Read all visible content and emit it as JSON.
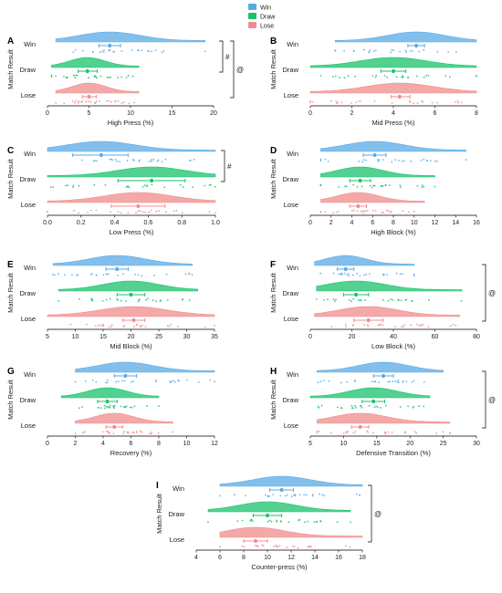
{
  "colors": {
    "win": "#5aa9e6",
    "draw": "#19c26b",
    "lose": "#f08c8c",
    "axis": "#000000",
    "text": "#222222"
  },
  "legend": [
    {
      "label": "Win",
      "color": "#5aa9e6"
    },
    {
      "label": "Draw",
      "color": "#19c26b"
    },
    {
      "label": "Lose",
      "color": "#f08c8c"
    }
  ],
  "chart_data": [
    {
      "panel": "A",
      "type": "raincloud",
      "xlabel": "High Press (%)",
      "ylabel": "Match Result",
      "categories": [
        "Win",
        "Draw",
        "Lose"
      ],
      "xlim": [
        0,
        20
      ],
      "ticks": [
        "0",
        "5",
        "10",
        "15",
        "20"
      ],
      "series": [
        {
          "name": "Win",
          "mean": 7.5,
          "ci": [
            6.2,
            8.8
          ],
          "range": [
            1,
            19
          ]
        },
        {
          "name": "Draw",
          "mean": 4.8,
          "ci": [
            3.7,
            6.0
          ],
          "range": [
            0.5,
            11
          ]
        },
        {
          "name": "Lose",
          "mean": 5.0,
          "ci": [
            4.2,
            5.9
          ],
          "range": [
            1,
            11
          ]
        }
      ],
      "annotations": [
        "#",
        "@"
      ]
    },
    {
      "panel": "B",
      "type": "raincloud",
      "xlabel": "Mid Press (%)",
      "ylabel": "Match Result",
      "categories": [
        "Win",
        "Draw",
        "Lose"
      ],
      "xlim": [
        0,
        8
      ],
      "ticks": [
        "0",
        "2",
        "4",
        "6",
        "8"
      ],
      "series": [
        {
          "name": "Win",
          "mean": 5.1,
          "ci": [
            4.7,
            5.5
          ],
          "range": [
            1.2,
            8
          ]
        },
        {
          "name": "Draw",
          "mean": 4.0,
          "ci": [
            3.4,
            4.6
          ],
          "range": [
            0,
            8
          ]
        },
        {
          "name": "Lose",
          "mean": 4.3,
          "ci": [
            3.9,
            4.8
          ],
          "range": [
            0,
            8
          ]
        }
      ],
      "annotations": []
    },
    {
      "panel": "C",
      "type": "raincloud",
      "xlabel": "Low Press (%)",
      "ylabel": "Match Result",
      "categories": [
        "Win",
        "Draw",
        "Lose"
      ],
      "xlim": [
        0.0,
        1.0
      ],
      "ticks": [
        "0.0",
        "0.2",
        "0.4",
        "0.6",
        "0.8",
        "1.0"
      ],
      "series": [
        {
          "name": "Win",
          "mean": 0.32,
          "ci": [
            0.15,
            0.48
          ],
          "range": [
            0,
            1
          ]
        },
        {
          "name": "Draw",
          "mean": 0.62,
          "ci": [
            0.42,
            0.82
          ],
          "range": [
            0,
            1
          ]
        },
        {
          "name": "Lose",
          "mean": 0.54,
          "ci": [
            0.38,
            0.7
          ],
          "range": [
            0,
            1
          ]
        }
      ],
      "annotations": [
        "#"
      ]
    },
    {
      "panel": "D",
      "type": "raincloud",
      "xlabel": "High Block (%)",
      "ylabel": "Match Result",
      "categories": [
        "Win",
        "Draw",
        "Lose"
      ],
      "xlim": [
        0,
        16
      ],
      "ticks": [
        "0",
        "2",
        "4",
        "6",
        "8",
        "10",
        "12",
        "14",
        "16"
      ],
      "series": [
        {
          "name": "Win",
          "mean": 6.2,
          "ci": [
            5.1,
            7.3
          ],
          "range": [
            1,
            15
          ]
        },
        {
          "name": "Draw",
          "mean": 4.8,
          "ci": [
            3.8,
            5.8
          ],
          "range": [
            1,
            12
          ]
        },
        {
          "name": "Lose",
          "mean": 4.6,
          "ci": [
            3.8,
            5.4
          ],
          "range": [
            1,
            11
          ]
        }
      ],
      "annotations": []
    },
    {
      "panel": "E",
      "type": "raincloud",
      "xlabel": "Mid Block (%)",
      "ylabel": "Match Result",
      "categories": [
        "Win",
        "Draw",
        "Lose"
      ],
      "xlim": [
        5,
        35
      ],
      "ticks": [
        "5",
        "10",
        "15",
        "20",
        "25",
        "30",
        "35"
      ],
      "series": [
        {
          "name": "Win",
          "mean": 17.5,
          "ci": [
            15.5,
            19.5
          ],
          "range": [
            6,
            31
          ]
        },
        {
          "name": "Draw",
          "mean": 20.0,
          "ci": [
            17.5,
            22.5
          ],
          "range": [
            7,
            32
          ]
        },
        {
          "name": "Lose",
          "mean": 20.5,
          "ci": [
            18.5,
            22.5
          ],
          "range": [
            5,
            35
          ]
        }
      ],
      "annotations": []
    },
    {
      "panel": "F",
      "type": "raincloud",
      "xlabel": "Low Block (%)",
      "ylabel": "Match Result",
      "categories": [
        "Win",
        "Draw",
        "Lose"
      ],
      "xlim": [
        0,
        80
      ],
      "ticks": [
        "0",
        "20",
        "40",
        "60",
        "80"
      ],
      "series": [
        {
          "name": "Win",
          "mean": 17,
          "ci": [
            13,
            21
          ],
          "range": [
            2,
            50
          ]
        },
        {
          "name": "Draw",
          "mean": 22,
          "ci": [
            16,
            28
          ],
          "range": [
            3,
            73
          ]
        },
        {
          "name": "Lose",
          "mean": 28,
          "ci": [
            21,
            35
          ],
          "range": [
            2,
            72
          ]
        }
      ],
      "annotations": [
        "@"
      ]
    },
    {
      "panel": "G",
      "type": "raincloud",
      "xlabel": "Recovery (%)",
      "ylabel": "Match Result",
      "categories": [
        "Win",
        "Draw",
        "Lose"
      ],
      "xlim": [
        0,
        12
      ],
      "ticks": [
        "0",
        "2",
        "4",
        "6",
        "8",
        "10",
        "12"
      ],
      "series": [
        {
          "name": "Win",
          "mean": 5.6,
          "ci": [
            4.8,
            6.4
          ],
          "range": [
            2,
            12
          ]
        },
        {
          "name": "Draw",
          "mean": 4.3,
          "ci": [
            3.6,
            5.0
          ],
          "range": [
            1,
            8
          ]
        },
        {
          "name": "Lose",
          "mean": 4.8,
          "ci": [
            4.2,
            5.4
          ],
          "range": [
            2,
            9
          ]
        }
      ],
      "annotations": []
    },
    {
      "panel": "H",
      "type": "raincloud",
      "xlabel": "Defensive Transition (%)",
      "ylabel": "Match Result",
      "categories": [
        "Win",
        "Draw",
        "Lose"
      ],
      "xlim": [
        5,
        30
      ],
      "ticks": [
        "5",
        "10",
        "15",
        "20",
        "25",
        "30"
      ],
      "series": [
        {
          "name": "Win",
          "mean": 16.0,
          "ci": [
            14.5,
            17.5
          ],
          "range": [
            6,
            25
          ]
        },
        {
          "name": "Draw",
          "mean": 14.5,
          "ci": [
            12.8,
            16.2
          ],
          "range": [
            5,
            23
          ]
        },
        {
          "name": "Lose",
          "mean": 12.5,
          "ci": [
            11.2,
            13.8
          ],
          "range": [
            6,
            26
          ]
        }
      ],
      "annotations": [
        "@"
      ]
    },
    {
      "panel": "I",
      "type": "raincloud",
      "xlabel": "Counter-press (%)",
      "ylabel": "Match Result",
      "categories": [
        "Win",
        "Draw",
        "Lose"
      ],
      "xlim": [
        4,
        18
      ],
      "ticks": [
        "4",
        "6",
        "8",
        "10",
        "12",
        "14",
        "16",
        "18"
      ],
      "series": [
        {
          "name": "Win",
          "mean": 11.2,
          "ci": [
            10.2,
            12.2
          ],
          "range": [
            6,
            18
          ]
        },
        {
          "name": "Draw",
          "mean": 10.0,
          "ci": [
            8.8,
            11.2
          ],
          "range": [
            5,
            17
          ]
        },
        {
          "name": "Lose",
          "mean": 9.0,
          "ci": [
            8.0,
            10.0
          ],
          "range": [
            6,
            18
          ]
        }
      ],
      "annotations": [
        "@"
      ]
    }
  ]
}
